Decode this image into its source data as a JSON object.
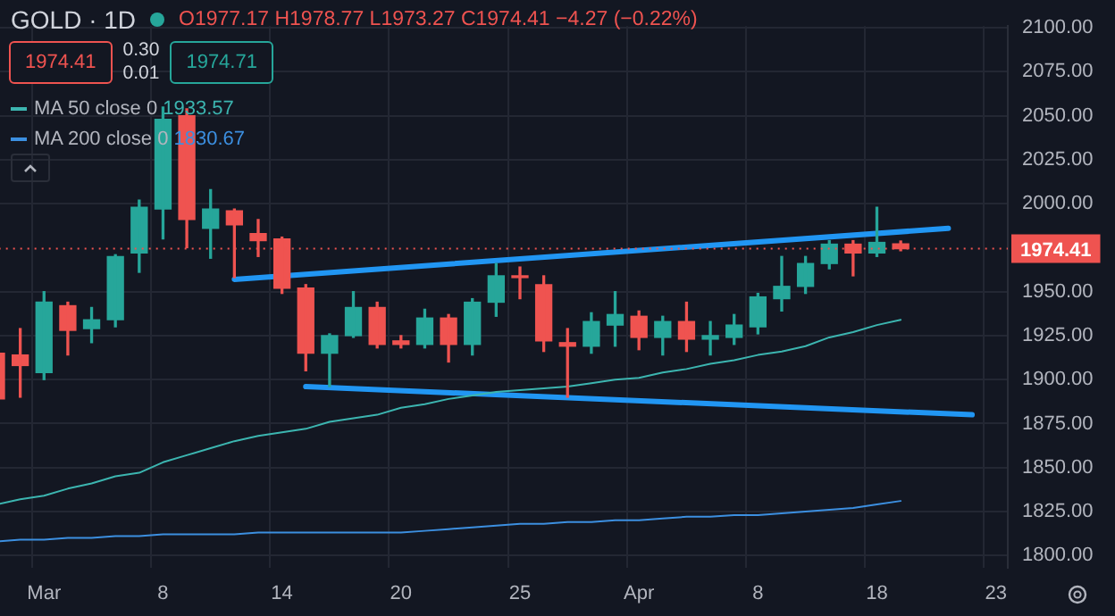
{
  "chart_data": {
    "type": "candlestick",
    "title": "GOLD · 1D",
    "subtitle": "O1977.17 H1978.77 L1973.27 C1974.41 −4.27 (−0.22%)",
    "categories": [
      null,
      null,
      "Mar",
      null,
      null,
      null,
      null,
      "8",
      null,
      null,
      null,
      null,
      "14",
      null,
      null,
      null,
      null,
      "20",
      null,
      null,
      null,
      null,
      "25",
      null,
      null,
      null,
      null,
      "Apr",
      null,
      null,
      null,
      null,
      "8",
      null,
      null,
      null,
      null,
      "18",
      null,
      null,
      null,
      null,
      "23"
    ],
    "ohlc": [
      [
        1915,
        1917,
        1887,
        1889
      ],
      [
        1914,
        1929,
        1890,
        1908
      ],
      [
        1904,
        1950,
        1900,
        1944
      ],
      [
        1942,
        1944,
        1914,
        1928
      ],
      [
        1929,
        1941,
        1921,
        1934
      ],
      [
        1934,
        1971,
        1930,
        1970
      ],
      [
        1972,
        2002,
        1961,
        1998
      ],
      [
        1997,
        2055,
        1980,
        2048
      ],
      [
        2050,
        2054,
        1975,
        1991
      ],
      [
        1986,
        2008,
        1969,
        1997
      ],
      [
        1996,
        1997,
        1958,
        1988
      ],
      [
        1983,
        1991,
        1970,
        1979
      ],
      [
        1980,
        1981,
        1949,
        1952
      ],
      [
        1952,
        1954,
        1905,
        1915
      ],
      [
        1915,
        1926,
        1896,
        1925
      ],
      [
        1925,
        1950,
        1924,
        1941
      ],
      [
        1941,
        1944,
        1918,
        1920
      ],
      [
        1922,
        1925,
        1918,
        1920
      ],
      [
        1920,
        1940,
        1918,
        1935
      ],
      [
        1935,
        1937,
        1910,
        1920
      ],
      [
        1920,
        1946,
        1914,
        1944
      ],
      [
        1944,
        1966,
        1936,
        1959
      ],
      [
        1959,
        1964,
        1946,
        1958
      ],
      [
        1954,
        1959,
        1916,
        1922
      ],
      [
        1921,
        1929,
        1890,
        1919
      ],
      [
        1919,
        1938,
        1915,
        1933
      ],
      [
        1931,
        1950,
        1919,
        1937
      ],
      [
        1936,
        1939,
        1917,
        1924
      ],
      [
        1924,
        1936,
        1914,
        1933
      ],
      [
        1933,
        1944,
        1916,
        1923
      ],
      [
        1923,
        1933,
        1914,
        1925
      ],
      [
        1924,
        1937,
        1920,
        1931
      ],
      [
        1930,
        1949,
        1926,
        1947
      ],
      [
        1946,
        1970,
        1939,
        1953
      ],
      [
        1953,
        1970,
        1949,
        1966
      ],
      [
        1966,
        1979,
        1963,
        1977
      ],
      [
        1977,
        1979,
        1959,
        1972
      ],
      [
        1972,
        1998,
        1970,
        1978
      ],
      [
        1977.17,
        1978.77,
        1973.27,
        1974.41
      ],
      null,
      null,
      null,
      null
    ],
    "colors": [
      "#ef5350",
      "#ef5350",
      "#26a69a",
      "#ef5350",
      "#26a69a",
      "#26a69a",
      "#26a69a",
      "#26a69a",
      "#ef5350",
      "#26a69a",
      "#ef5350",
      "#ef5350",
      "#ef5350",
      "#ef5350",
      "#26a69a",
      "#26a69a",
      "#ef5350",
      "#ef5350",
      "#26a69a",
      "#ef5350",
      "#26a69a",
      "#26a69a",
      "#ef5350",
      "#ef5350",
      "#ef5350",
      "#26a69a",
      "#26a69a",
      "#ef5350",
      "#26a69a",
      "#ef5350",
      "#26a69a",
      "#26a69a",
      "#26a69a",
      "#26a69a",
      "#26a69a",
      "#26a69a",
      "#ef5350",
      "#26a69a",
      "#ef5350",
      null,
      null,
      null,
      null
    ],
    "series": [
      {
        "type": "line",
        "name": "MA 50 close 0",
        "color": "#3cb5b0",
        "values": [
          1829,
          1832,
          1834,
          1838,
          1841,
          1845,
          1847,
          1853,
          1857,
          1861,
          1865,
          1868,
          1870,
          1872,
          1876,
          1878,
          1880,
          1884,
          1886,
          1889,
          1891,
          1893,
          1894,
          1895,
          1896,
          1898,
          1900,
          1901,
          1904,
          1906,
          1909,
          1911,
          1914,
          1916,
          1919,
          1924,
          1927,
          1931,
          1934,
          null,
          null,
          null,
          null
        ]
      },
      {
        "type": "line",
        "name": "MA 200 close 0",
        "color": "#3c8fe0",
        "values": [
          1808,
          1809,
          1809,
          1810,
          1810,
          1811,
          1811,
          1812,
          1812,
          1812,
          1812,
          1813,
          1813,
          1813,
          1813,
          1813,
          1813,
          1813,
          1814,
          1815,
          1816,
          1817,
          1818,
          1818,
          1819,
          1819,
          1820,
          1820,
          1821,
          1822,
          1822,
          1823,
          1823,
          1824,
          1825,
          1826,
          1827,
          1829,
          1831,
          null,
          null,
          null,
          null
        ]
      },
      {
        "type": "line",
        "color": "#2196f3",
        "values": [
          null,
          null,
          null,
          null,
          null,
          null,
          null,
          null,
          null,
          null,
          1957,
          null,
          null,
          null,
          null,
          null,
          null,
          null,
          null,
          null,
          null,
          null,
          null,
          null,
          null,
          null,
          null,
          null,
          null,
          null,
          null,
          null,
          null,
          null,
          null,
          null,
          null,
          null,
          null,
          null,
          1986,
          null,
          null
        ]
      },
      {
        "type": "line",
        "color": "#2196f3",
        "values": [
          null,
          null,
          null,
          null,
          null,
          null,
          null,
          null,
          null,
          null,
          null,
          null,
          null,
          1896,
          null,
          null,
          null,
          null,
          null,
          null,
          null,
          null,
          null,
          null,
          null,
          null,
          null,
          null,
          null,
          null,
          null,
          null,
          null,
          null,
          null,
          null,
          null,
          null,
          null,
          null,
          null,
          1880,
          null
        ]
      }
    ],
    "ylim": [
      1793,
      2101
    ],
    "yticks": [
      {
        "value": 1800,
        "label": "1800.00"
      },
      {
        "value": 1825,
        "label": "1825.00"
      },
      {
        "value": 1850,
        "label": "1850.00"
      },
      {
        "value": 1875,
        "label": "1875.00"
      },
      {
        "value": 1900,
        "label": "1900.00"
      },
      {
        "value": 1925,
        "label": "1925.00"
      },
      {
        "value": 1950,
        "label": "1950.00"
      },
      {
        "value": 2000,
        "label": "2000.00"
      },
      {
        "value": 2025,
        "label": "2025.00"
      },
      {
        "value": 2050,
        "label": "2050.00"
      },
      {
        "value": 2075,
        "label": "2075.00"
      },
      {
        "value": 2100,
        "label": "2100.00"
      }
    ],
    "ref_lines": [
      {
        "axis": "y",
        "value": 1974.41,
        "label": "1974.41",
        "color": "#ef5350",
        "line_style": "dotted"
      }
    ],
    "annotations": [
      "1974.41",
      "0.30",
      "0.01",
      "1974.71",
      "1933.57",
      "1830.67"
    ],
    "grid": true,
    "legend": "top left"
  }
}
